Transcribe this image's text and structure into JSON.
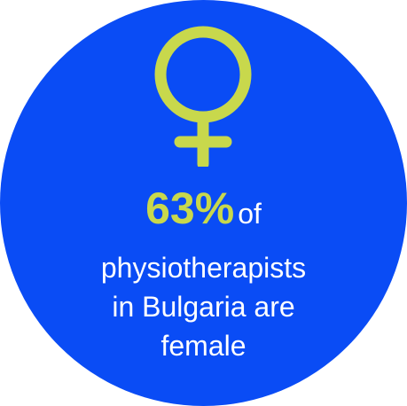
{
  "infographic": {
    "percentage": "63%",
    "connector": "of",
    "lines": [
      "physiotherapists",
      "in Bulgaria are",
      "female"
    ],
    "icon": "female-symbol-icon",
    "colors": {
      "circle": "#0a4cf5",
      "accent": "#c8d84c",
      "text": "#ffffff"
    }
  }
}
